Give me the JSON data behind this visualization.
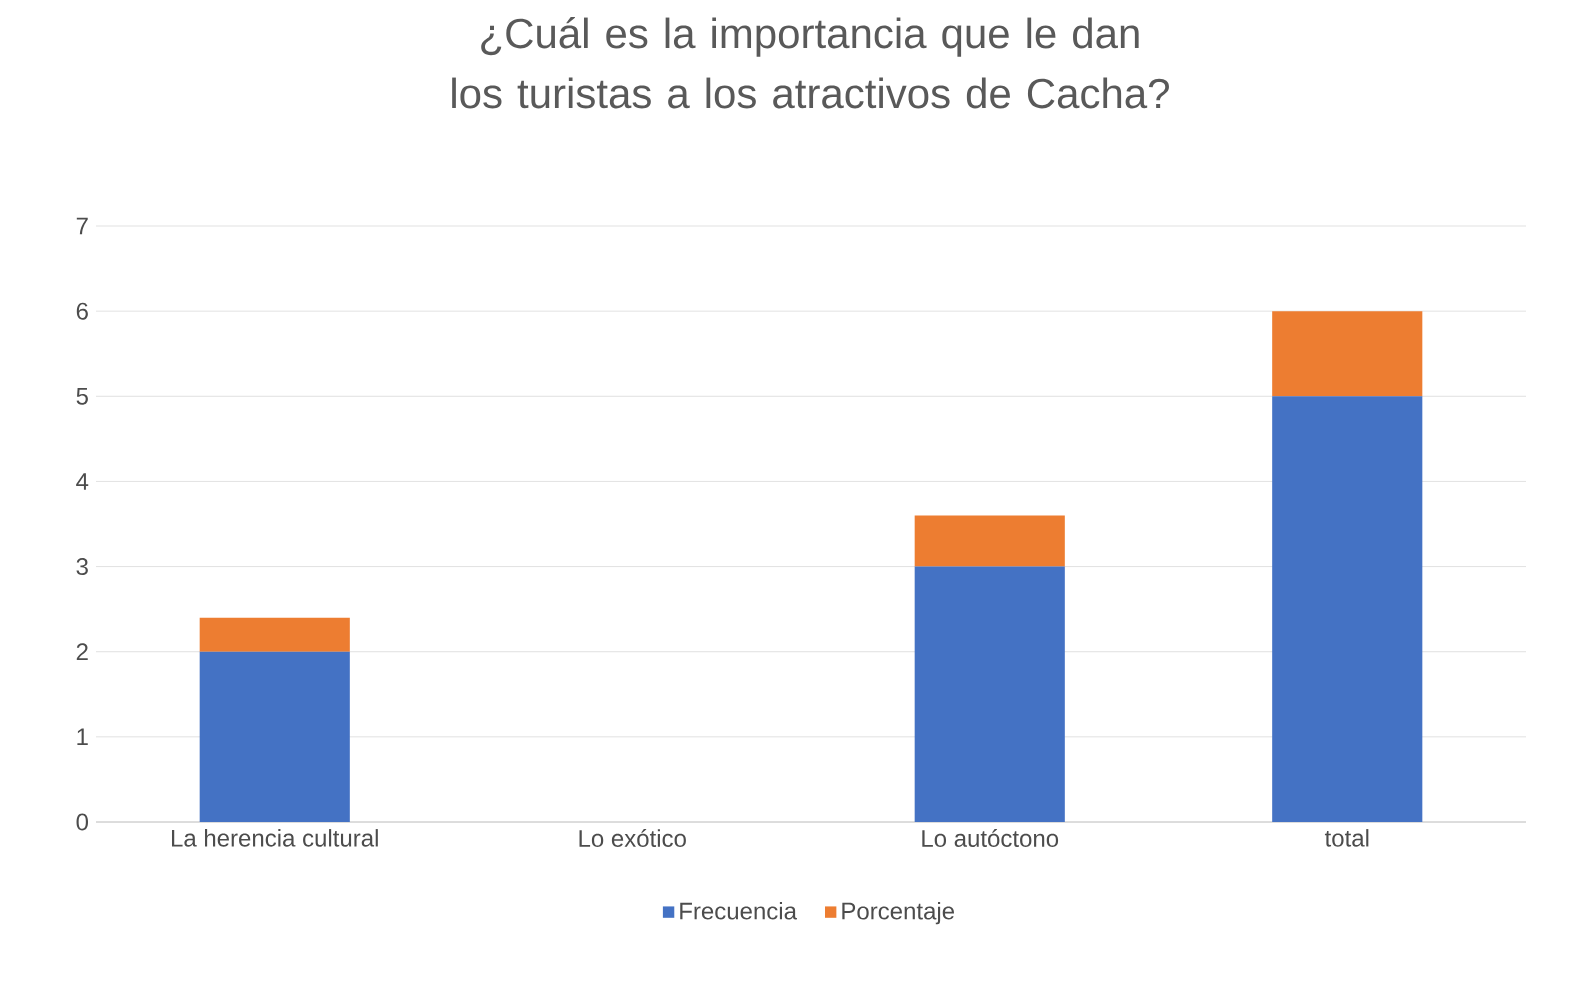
{
  "chart_data": {
    "type": "bar",
    "stacked": true,
    "title": "¿Cuál es la importancia que le dan los turistas a los atractivos de Cacha?",
    "categories": [
      "La herencia cultural",
      "Lo exótico",
      "Lo autóctono",
      "total"
    ],
    "series": [
      {
        "name": "Frecuencia",
        "color": "#4472c4",
        "values": [
          2,
          0,
          3,
          5
        ]
      },
      {
        "name": "Porcentaje",
        "color": "#ed7d31",
        "values": [
          0.4,
          0,
          0.6,
          1
        ]
      }
    ],
    "ylim": [
      0,
      7
    ],
    "yticks": [
      0,
      1,
      2,
      3,
      4,
      5,
      6,
      7
    ],
    "grid": "y",
    "legend": "bottom"
  }
}
